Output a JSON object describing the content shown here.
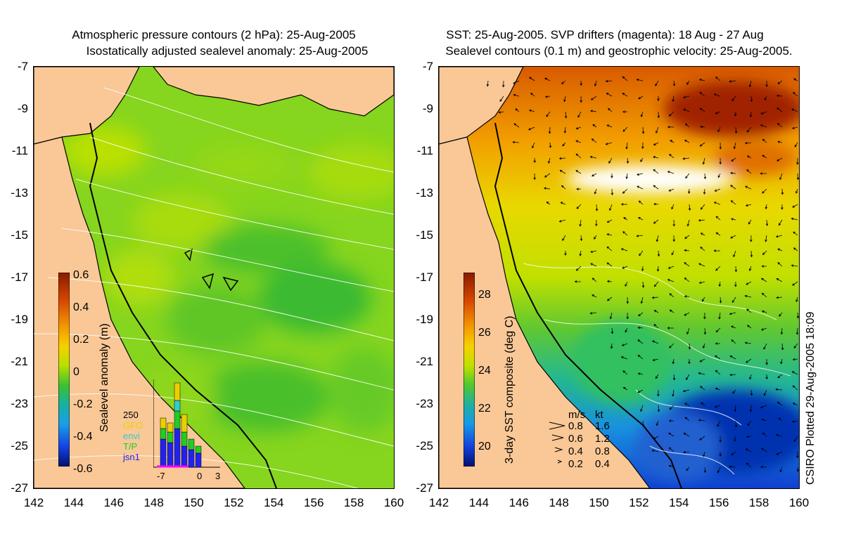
{
  "left_panel": {
    "title_line1": "Atmospheric pressure contours (2 hPa): 25-Aug-2005",
    "title_line2": "Isostatically adjusted sealevel anomaly: 25-Aug-2005",
    "colorbar_title": "Sealevel anomaly (m)",
    "colorbar_ticks": [
      "0.6",
      "0.4",
      "0.2",
      "0",
      "-0.2",
      "-0.4",
      "-0.6"
    ],
    "histogram": {
      "ymax_label": "250",
      "series": [
        {
          "name": "GFO",
          "color": "#e8d000"
        },
        {
          "name": "envi",
          "color": "#33cccc"
        },
        {
          "name": "T/P",
          "color": "#22cc22"
        },
        {
          "name": "jsn1",
          "color": "#2222ee"
        }
      ],
      "xticks": [
        "-7",
        "0",
        "3"
      ]
    }
  },
  "right_panel": {
    "title_line1": "SST: 25-Aug-2005. SVP drifters (magenta): 18 Aug - 27 Aug",
    "title_line2": "Sealevel contours (0.1 m) and geostrophic velocity: 25-Aug-2005.",
    "colorbar_title": "3-day SST composite (deg C)",
    "colorbar_ticks": [
      "28",
      "26",
      "24",
      "22",
      "20"
    ],
    "velocity_legend": {
      "header_ms": "m/s",
      "header_kt": "kt",
      "rows": [
        {
          "ms": "0.8",
          "kt": "1.6"
        },
        {
          "ms": "0.6",
          "kt": "1.2"
        },
        {
          "ms": "0.4",
          "kt": "0.8"
        },
        {
          "ms": "0.2",
          "kt": "0.4"
        }
      ]
    }
  },
  "axes": {
    "lat_ticks": [
      "-7",
      "-9",
      "-11",
      "-13",
      "-15",
      "-17",
      "-19",
      "-21",
      "-23",
      "-25",
      "-27"
    ],
    "lon_ticks": [
      "142",
      "144",
      "146",
      "148",
      "150",
      "152",
      "154",
      "156",
      "158",
      "160"
    ]
  },
  "credit": "CSIRO Plotted 29-Aug-2005 18:09",
  "colors": {
    "land": "#f9c896",
    "sla_colorbar": [
      "#8b1a00",
      "#d84a00",
      "#f39a00",
      "#f8d000",
      "#b7e000",
      "#40c030",
      "#18b0a0",
      "#1aa0e8",
      "#1540e0",
      "#001070"
    ],
    "sst_colorbar": [
      "#8b1a00",
      "#d84a00",
      "#f39a00",
      "#f8d000",
      "#c0e000",
      "#50c830",
      "#20b0a0",
      "#1898e8",
      "#1240d8",
      "#000f6e"
    ]
  }
}
